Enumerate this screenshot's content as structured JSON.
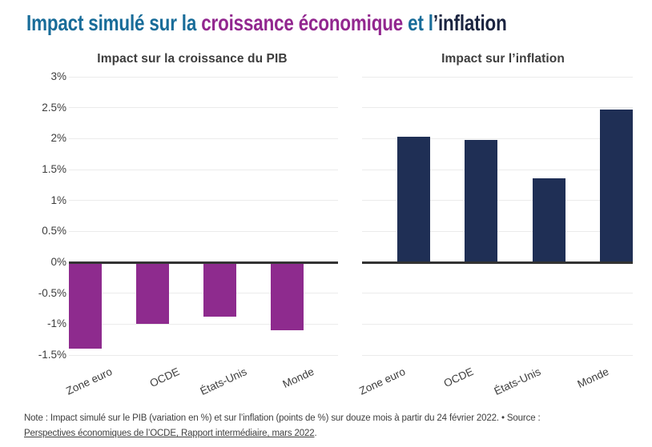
{
  "figure": {
    "title_segments": [
      {
        "text": "Impact simulé sur la ",
        "color": "#186C99"
      },
      {
        "text": "croissance économique",
        "color": "#92278F"
      },
      {
        "text": " et l",
        "color": "#186C99"
      },
      {
        "text": "’inflation",
        "color": "#1B2440"
      }
    ]
  },
  "y_axis": {
    "ticks": [
      {
        "label": "3%",
        "value": 3
      },
      {
        "label": "2.5%",
        "value": 2.5
      },
      {
        "label": "2%",
        "value": 2
      },
      {
        "label": "1.5%",
        "value": 1.5
      },
      {
        "label": "1%",
        "value": 1
      },
      {
        "label": "0.5%",
        "value": 0.5
      },
      {
        "label": "0%",
        "value": 0
      },
      {
        "label": "-0.5%",
        "value": -0.5
      },
      {
        "label": "-1%",
        "value": -1
      },
      {
        "label": "-1.5%",
        "value": -1.5
      }
    ]
  },
  "chart_data": [
    {
      "type": "bar",
      "title": "Impact sur la croissance du PIB",
      "categories": [
        "Zone euro",
        "OCDE",
        "États-Unis",
        "Monde"
      ],
      "values": [
        -1.4,
        -1.0,
        -0.88,
        -1.1
      ],
      "unit": "variation du PIB en %",
      "bar_color": "#8E2B8E",
      "ylim": [
        -1.5,
        3
      ],
      "ytick_step": 0.5,
      "ytick_labels": [
        "3%",
        "2.5%",
        "2%",
        "1.5%",
        "1%",
        "0.5%",
        "0%",
        "-0.5%",
        "-1%",
        "-1.5%"
      ],
      "grid": true,
      "legend": "none"
    },
    {
      "type": "bar",
      "title": "Impact sur l’inflation",
      "categories": [
        "Zone euro",
        "OCDE",
        "États-Unis",
        "Monde"
      ],
      "values": [
        2.03,
        1.98,
        1.36,
        2.47
      ],
      "unit": "points de %",
      "bar_color": "#1F2F55",
      "ylim": [
        -1.5,
        3
      ],
      "ytick_step": 0.5,
      "ytick_labels": [
        "3%",
        "2.5%",
        "2%",
        "1.5%",
        "1%",
        "0.5%",
        "0%",
        "-0.5%",
        "-1%",
        "-1.5%"
      ],
      "grid": true,
      "legend": "none"
    }
  ],
  "note": {
    "prefix": "Note : Impact simulé sur le PIB (variation en %) et sur l’inflation (points de %) sur douze mois à partir du 24 février 2022. • Source :",
    "link": "Perspectives économiques de l’OCDE, Rapport intermédiaire, mars 2022",
    "suffix": "."
  },
  "colors": {
    "title_teal": "#186C99",
    "title_purple": "#92278F",
    "title_navy": "#1B2440",
    "bar_gdp": "#8E2B8E",
    "bar_inflation": "#1F2F55",
    "gridline": "#EBEBEB",
    "zero_line": "#333333",
    "axis_text": "#3D3D3D",
    "note_text": "#3F3F3F"
  }
}
